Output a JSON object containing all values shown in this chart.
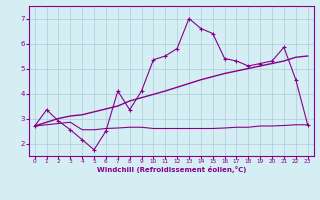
{
  "xlabel": "Windchill (Refroidissement éolien,°C)",
  "bg_color": "#d4eef4",
  "line_color": "#880088",
  "grid_color": "#b8dde8",
  "xlim": [
    -0.5,
    23.5
  ],
  "ylim": [
    1.5,
    7.5
  ],
  "xticks": [
    0,
    1,
    2,
    3,
    4,
    5,
    6,
    7,
    8,
    9,
    10,
    11,
    12,
    13,
    14,
    15,
    16,
    17,
    18,
    19,
    20,
    21,
    22,
    23
  ],
  "yticks": [
    2,
    3,
    4,
    5,
    6,
    7
  ],
  "series1_x": [
    0,
    1,
    2,
    3,
    4,
    5,
    6,
    7,
    8,
    9,
    10,
    11,
    12,
    13,
    14,
    15,
    16,
    17,
    18,
    19,
    20,
    21,
    22,
    23
  ],
  "series1_y": [
    2.7,
    3.35,
    2.9,
    2.55,
    2.15,
    1.75,
    2.5,
    4.1,
    3.35,
    4.1,
    5.35,
    5.5,
    5.8,
    7.0,
    6.6,
    6.4,
    5.4,
    5.3,
    5.1,
    5.2,
    5.3,
    5.85,
    4.55,
    2.75
  ],
  "series2_x": [
    0,
    2,
    3,
    4,
    7,
    8,
    11,
    13,
    14,
    16,
    17,
    19,
    20,
    21,
    22,
    23
  ],
  "series2_y": [
    2.7,
    3.0,
    3.1,
    3.15,
    3.5,
    3.7,
    4.1,
    4.4,
    4.55,
    4.8,
    4.9,
    5.1,
    5.2,
    5.3,
    5.45,
    5.5
  ],
  "series3_x": [
    0,
    1,
    2,
    3,
    4,
    5,
    6,
    7,
    8,
    9,
    10,
    11,
    12,
    13,
    14,
    15,
    16,
    17,
    18,
    19,
    20,
    21,
    22,
    23
  ],
  "series3_y": [
    2.7,
    2.75,
    2.8,
    2.85,
    2.55,
    2.55,
    2.6,
    2.62,
    2.65,
    2.65,
    2.6,
    2.6,
    2.6,
    2.6,
    2.6,
    2.6,
    2.62,
    2.65,
    2.65,
    2.7,
    2.7,
    2.72,
    2.75,
    2.75
  ]
}
